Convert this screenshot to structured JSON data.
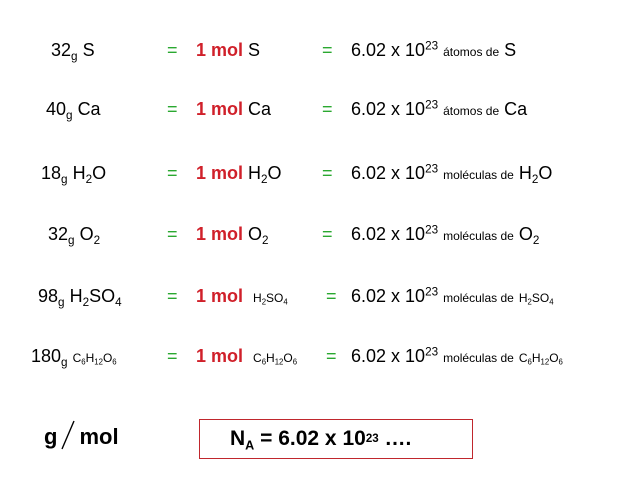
{
  "colors": {
    "equals": "#2aa830",
    "mol": "#d0202a",
    "box_border": "#c0272d"
  },
  "rows": [
    {
      "mass_num": "32",
      "mass_unit": "g",
      "mass_species": [
        "S"
      ],
      "eq1": "=",
      "one_mol": "1 mol",
      "mol_species": [
        "S"
      ],
      "eq2": "=",
      "avogadro_base": "6.02 x 10",
      "avogadro_exp": "23",
      "particle": "átomos de",
      "result_species": [
        "S"
      ]
    },
    {
      "mass_num": "40",
      "mass_unit": "g",
      "mass_species": [
        "Ca"
      ],
      "eq1": "=",
      "one_mol": "1 mol",
      "mol_species": [
        "Ca"
      ],
      "eq2": "=",
      "avogadro_base": "6.02 x 10",
      "avogadro_exp": "23",
      "particle": "átomos de",
      "result_species": [
        "Ca"
      ]
    },
    {
      "mass_num": "18",
      "mass_unit": "g",
      "mass_species": [
        "H",
        "2",
        "O"
      ],
      "eq1": "=",
      "one_mol": "1 mol",
      "mol_species": [
        "H",
        "2",
        "O"
      ],
      "eq2": "=",
      "avogadro_base": "6.02 x 10",
      "avogadro_exp": "23",
      "particle": "moléculas de",
      "result_species": [
        "H",
        "2",
        "O"
      ]
    },
    {
      "mass_num": "32",
      "mass_unit": "g",
      "mass_species": [
        "O",
        "2"
      ],
      "eq1": "=",
      "one_mol": "1 mol",
      "mol_species": [
        "O",
        "2"
      ],
      "eq2": "=",
      "avogadro_base": "6.02 x 10",
      "avogadro_exp": "23",
      "particle": "moléculas de",
      "result_species": [
        "O",
        "2"
      ]
    },
    {
      "mass_num": "98",
      "mass_unit": "g",
      "mass_species": [
        "H",
        "2",
        "SO",
        "4"
      ],
      "eq1": "=",
      "one_mol": "1 mol",
      "mol_species": [
        "H",
        "2",
        "SO",
        "4"
      ],
      "eq2": "=",
      "avogadro_base": "6.02 x 10",
      "avogadro_exp": "23",
      "particle": "moléculas de",
      "result_species": [
        "H",
        "2",
        "SO",
        "4"
      ]
    },
    {
      "mass_num": "180",
      "mass_unit": "g",
      "mass_species": [
        "C",
        "6",
        "H",
        "12",
        "O",
        "6"
      ],
      "eq1": "=",
      "one_mol": "1 mol",
      "mol_species": [
        "C",
        "6",
        "H",
        "12",
        "O",
        "6"
      ],
      "eq2": "=",
      "avogadro_base": "6.02 x 10",
      "avogadro_exp": "23",
      "particle": "moléculas de",
      "result_species": [
        "C",
        "6",
        "H",
        "12",
        "O",
        "6"
      ]
    }
  ],
  "footer": {
    "unit_num": "g",
    "unit_den": "mol",
    "avogadro_symbol": "N",
    "avogadro_symbol_sub": "A",
    "avogadro_value": "= 6.02 x 10",
    "avogadro_exp": "23",
    "avogadro_tail": "…."
  }
}
